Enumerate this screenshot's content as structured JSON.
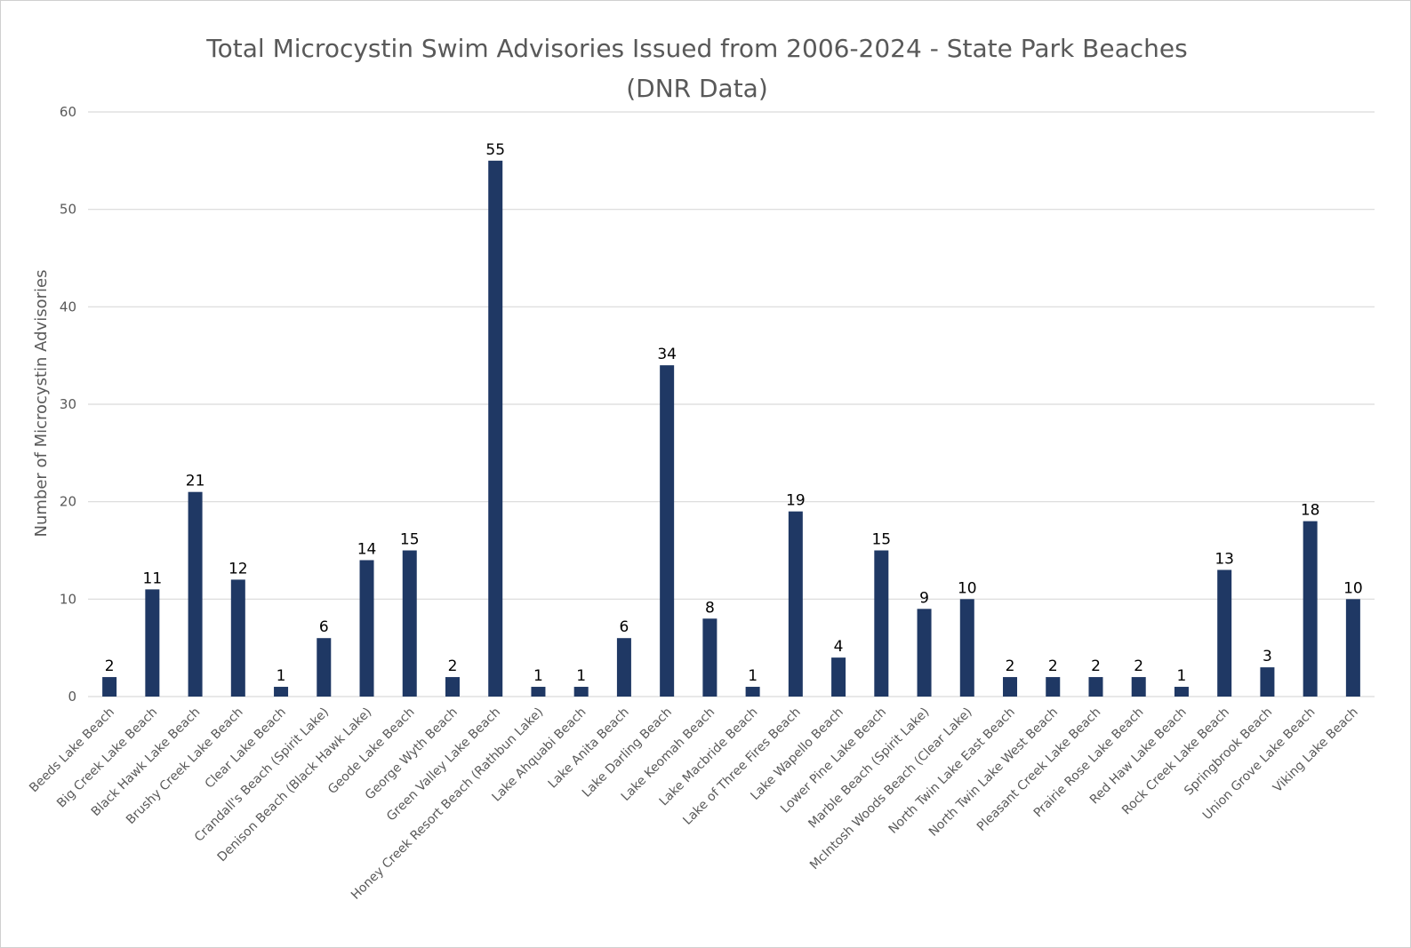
{
  "chart_data": {
    "type": "bar",
    "title": "Total Microcystin Swim Advisories Issued from 2006-2024 - State Park Beaches",
    "subtitle": "(DNR Data)",
    "xlabel": "",
    "ylabel": "Number of Microcystin  Advisories",
    "ylim": [
      0,
      60
    ],
    "yticks": [
      0,
      10,
      20,
      30,
      40,
      50,
      60
    ],
    "grid": true,
    "legend": "none",
    "bar_color": "#1f3864",
    "categories": [
      "Beeds Lake Beach",
      "Big Creek Lake Beach",
      "Black Hawk Lake Beach",
      "Brushy Creek Lake Beach",
      "Clear Lake Beach",
      "Crandall's Beach (Spirit Lake)",
      "Denison Beach (Black Hawk Lake)",
      "Geode Lake Beach",
      "George Wyth Beach",
      "Green Valley Lake Beach",
      "Honey Creek Resort Beach (Rathbun Lake)",
      "Lake Ahquabi Beach",
      "Lake Anita Beach",
      "Lake Darling Beach",
      "Lake Keomah Beach",
      "Lake Macbride Beach",
      "Lake of Three Fires Beach",
      "Lake Wapello Beach",
      "Lower Pine Lake Beach",
      "Marble Beach (Spirit Lake)",
      "McIntosh Woods Beach (Clear Lake)",
      "North Twin Lake East Beach",
      "North Twin Lake West Beach",
      "Pleasant Creek Lake Beach",
      "Prairie Rose Lake Beach",
      "Red Haw Lake Beach",
      "Rock Creek Lake Beach",
      "Springbrook Beach",
      "Union Grove Lake Beach",
      "Viking Lake Beach"
    ],
    "values": [
      2,
      11,
      21,
      12,
      1,
      6,
      14,
      15,
      2,
      55,
      1,
      1,
      6,
      34,
      8,
      1,
      19,
      4,
      15,
      9,
      10,
      2,
      2,
      2,
      2,
      1,
      13,
      3,
      18,
      10
    ]
  }
}
